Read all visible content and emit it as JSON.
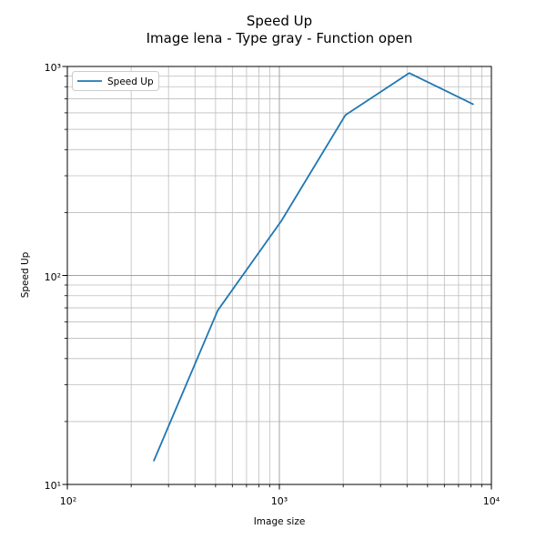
{
  "title": {
    "line1": "Speed Up",
    "line2": "Image lena - Type gray - Function open"
  },
  "chart_data": {
    "type": "line",
    "x": [
      256,
      512,
      1024,
      2048,
      4096,
      8192
    ],
    "series": [
      {
        "name": "Speed Up",
        "values": [
          13,
          68,
          183,
          585,
          930,
          660
        ],
        "color": "#1f77b4"
      }
    ],
    "title": "Speed Up\nImage lena - Type gray - Function open",
    "xlabel": "Image size",
    "ylabel": "Speed Up",
    "xscale": "log",
    "yscale": "log",
    "xlim": [
      100,
      10000
    ],
    "ylim": [
      10,
      1000
    ],
    "grid": "both",
    "legend_position": "upper left"
  },
  "axes": {
    "x_tick_labels": [
      "10²",
      "10³",
      "10⁴"
    ],
    "y_tick_labels": [
      "10¹",
      "10²",
      "10³"
    ]
  },
  "colors": {
    "line": "#1f77b4",
    "grid_major": "#a3a3a3",
    "grid_minor": "#bdbdbd",
    "spine": "#000000",
    "tick": "#000000",
    "legend_border": "#cccccc",
    "legend_bg": "#ffffff",
    "background": "#ffffff"
  }
}
